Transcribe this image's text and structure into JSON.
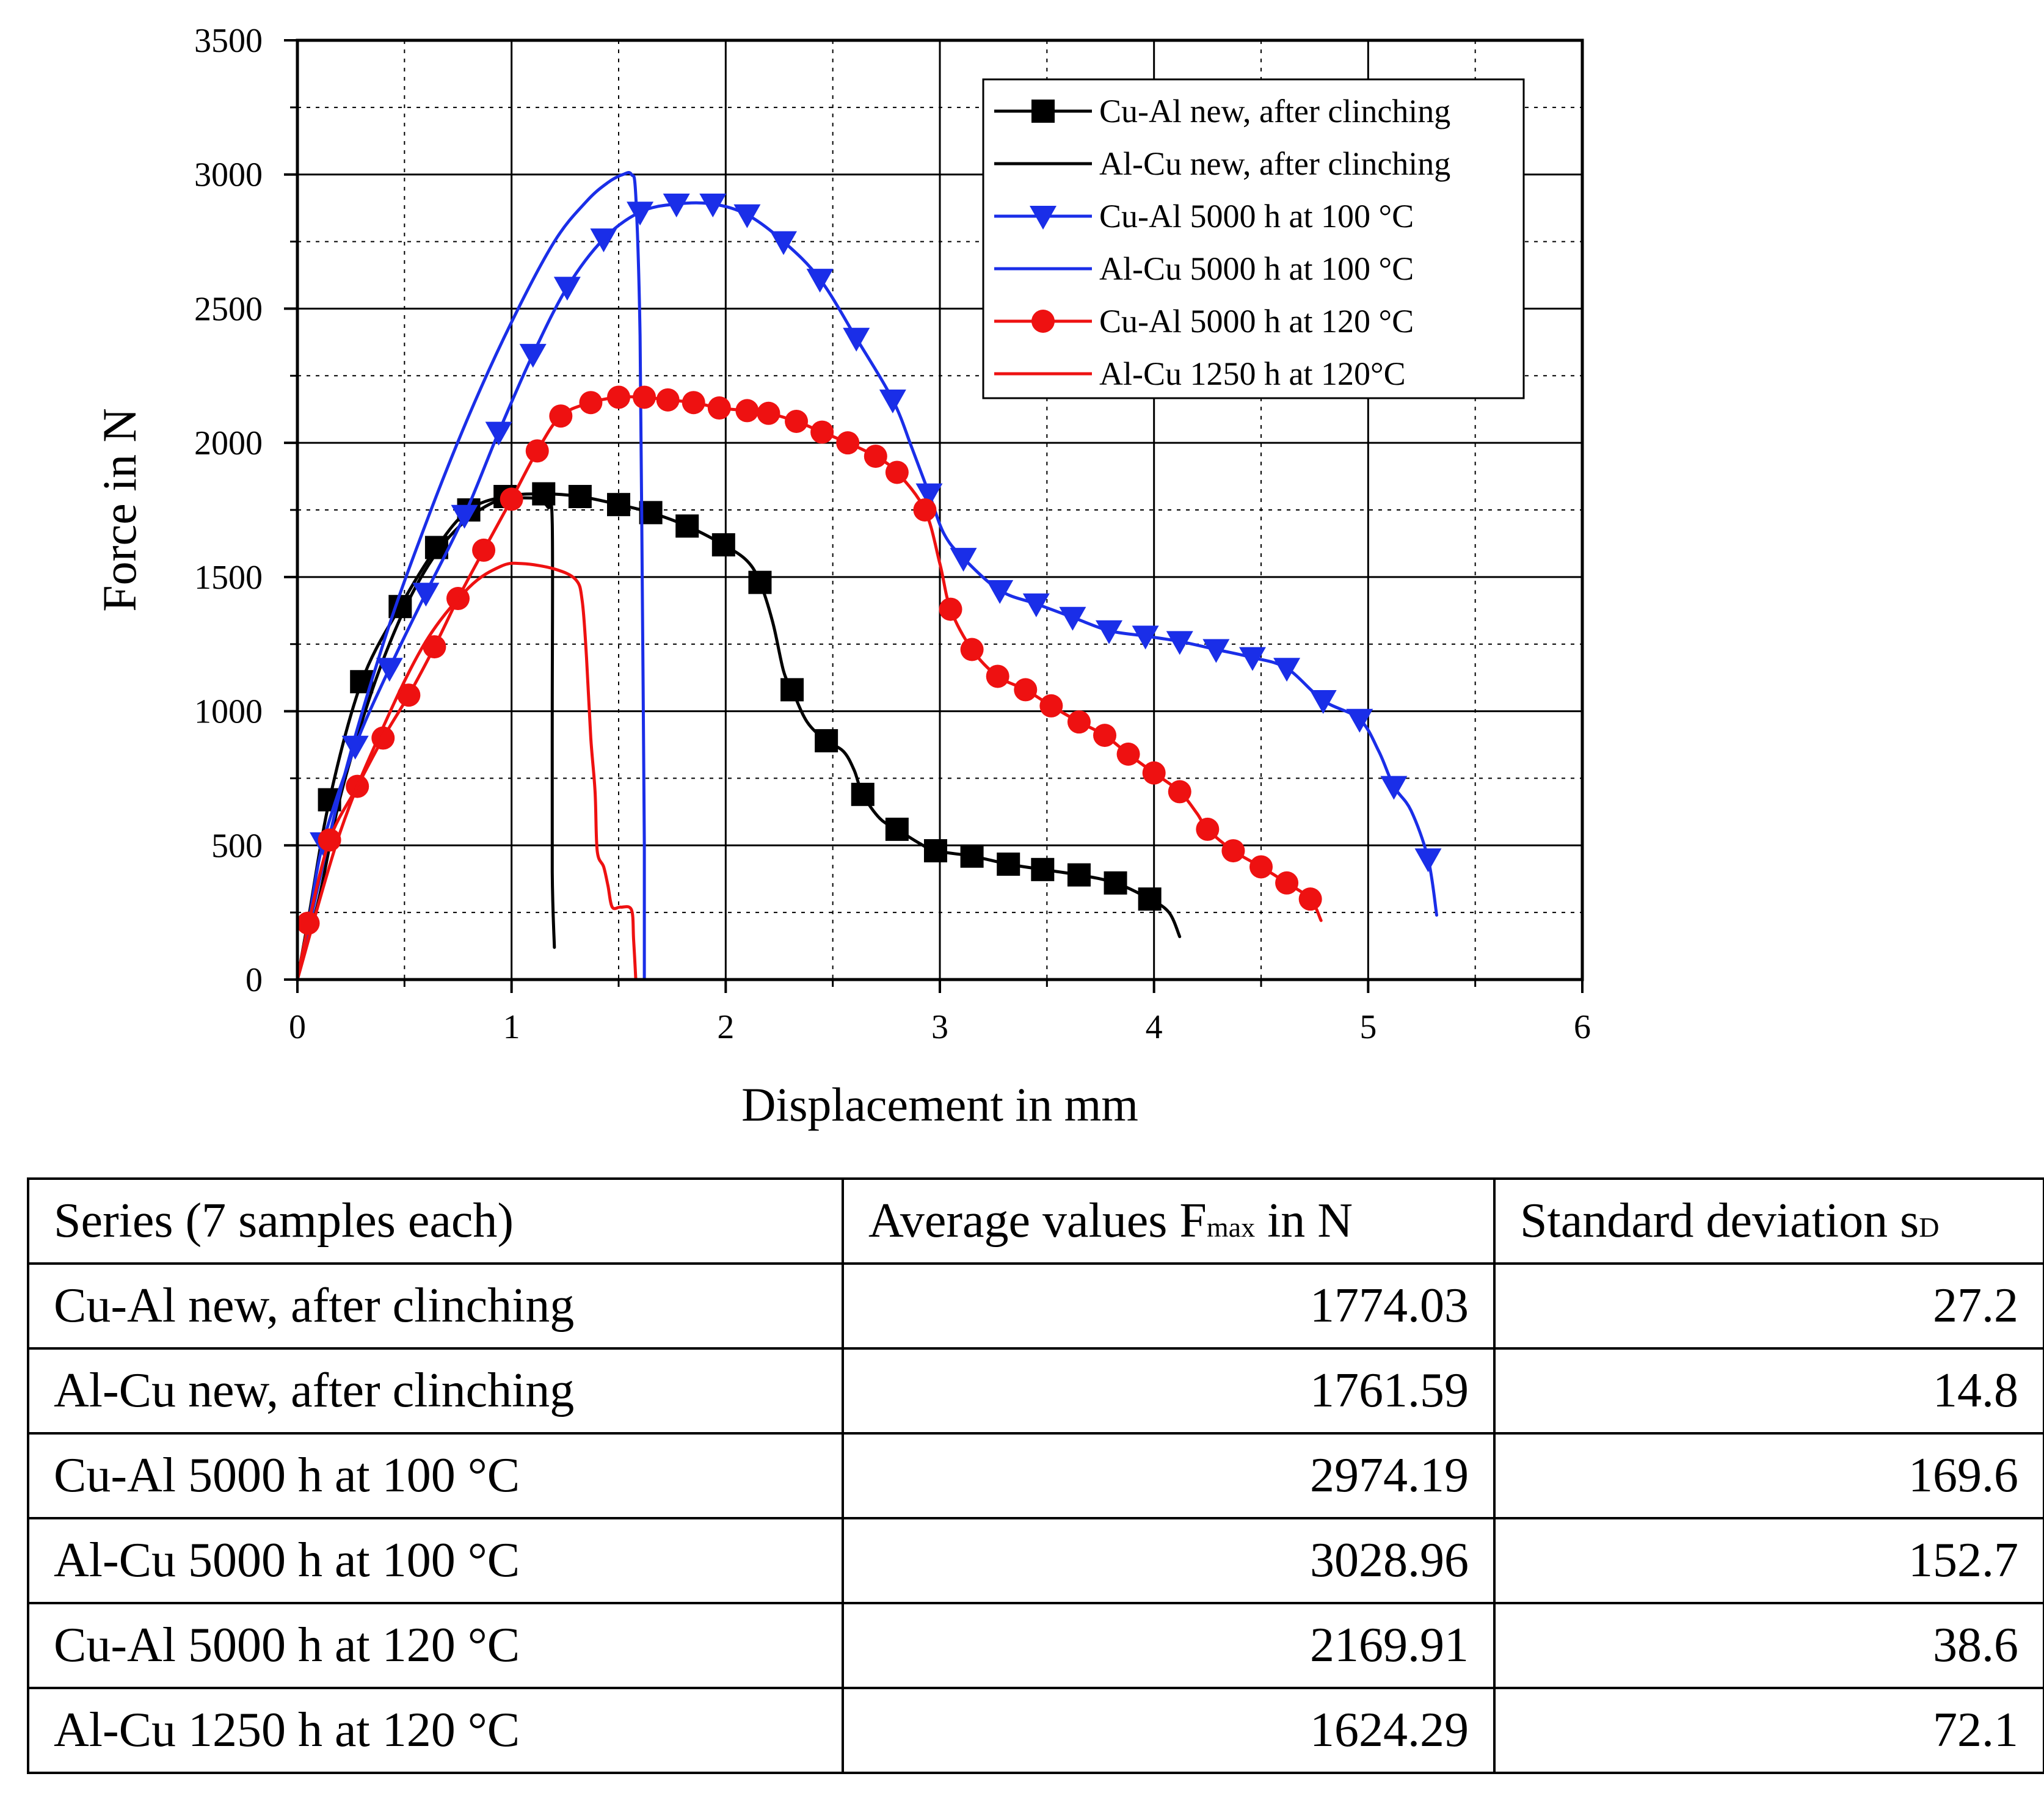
{
  "chart_data": {
    "type": "line",
    "title": "",
    "xlabel": "Displacement in mm",
    "ylabel": "Force in N",
    "xlim": [
      0,
      6
    ],
    "ylim": [
      0,
      3500
    ],
    "xticks": [
      "0",
      "1",
      "2",
      "3",
      "4",
      "5",
      "6"
    ],
    "yticks": [
      "0",
      "500",
      "1000",
      "1500",
      "2000",
      "2500",
      "3000",
      "3500"
    ],
    "grid": true,
    "legend_position": "top-right",
    "series": [
      {
        "name": "Cu-Al new, after clinching",
        "color": "#000000",
        "marker": "square",
        "line": [
          [
            0,
            0
          ],
          [
            0.05,
            220
          ],
          [
            0.15,
            670
          ],
          [
            0.3,
            1110
          ],
          [
            0.48,
            1390
          ],
          [
            0.65,
            1610
          ],
          [
            0.8,
            1750
          ],
          [
            0.97,
            1800
          ],
          [
            1.15,
            1810
          ],
          [
            1.32,
            1800
          ],
          [
            1.5,
            1770
          ],
          [
            1.65,
            1740
          ],
          [
            1.82,
            1690
          ],
          [
            1.99,
            1620
          ],
          [
            2.1,
            1560
          ],
          [
            2.16,
            1480
          ],
          [
            2.22,
            1330
          ],
          [
            2.27,
            1150
          ],
          [
            2.31,
            1080
          ],
          [
            2.38,
            960
          ],
          [
            2.47,
            890
          ],
          [
            2.55,
            850
          ],
          [
            2.6,
            780
          ],
          [
            2.64,
            690
          ],
          [
            2.72,
            600
          ],
          [
            2.8,
            560
          ],
          [
            2.9,
            510
          ],
          [
            2.98,
            480
          ],
          [
            3.15,
            460
          ],
          [
            3.32,
            430
          ],
          [
            3.48,
            410
          ],
          [
            3.65,
            390
          ],
          [
            3.82,
            360
          ],
          [
            3.98,
            300
          ],
          [
            4.07,
            250
          ],
          [
            4.12,
            160
          ]
        ],
        "markers": [
          [
            0.15,
            670
          ],
          [
            0.3,
            1110
          ],
          [
            0.48,
            1390
          ],
          [
            0.65,
            1610
          ],
          [
            0.8,
            1750
          ],
          [
            0.97,
            1800
          ],
          [
            1.15,
            1810
          ],
          [
            1.32,
            1800
          ],
          [
            1.5,
            1770
          ],
          [
            1.65,
            1740
          ],
          [
            1.82,
            1690
          ],
          [
            1.99,
            1620
          ],
          [
            2.16,
            1480
          ],
          [
            2.31,
            1080
          ],
          [
            2.47,
            890
          ],
          [
            2.64,
            690
          ],
          [
            2.8,
            560
          ],
          [
            2.98,
            480
          ],
          [
            3.15,
            460
          ],
          [
            3.32,
            430
          ],
          [
            3.48,
            410
          ],
          [
            3.65,
            390
          ],
          [
            3.82,
            360
          ],
          [
            3.98,
            300
          ]
        ]
      },
      {
        "name": "Al-Cu new, after clinching",
        "color": "#000000",
        "marker": "none",
        "line": [
          [
            0,
            0
          ],
          [
            0.1,
            300
          ],
          [
            0.2,
            680
          ],
          [
            0.35,
            1080
          ],
          [
            0.5,
            1380
          ],
          [
            0.65,
            1590
          ],
          [
            0.8,
            1720
          ],
          [
            0.95,
            1790
          ],
          [
            1.05,
            1795
          ],
          [
            1.12,
            1790
          ],
          [
            1.17,
            1760
          ],
          [
            1.19,
            1700
          ],
          [
            1.19,
            1000
          ],
          [
            1.19,
            400
          ],
          [
            1.2,
            120
          ]
        ],
        "markers": []
      },
      {
        "name": "Cu-Al 5000 h at 100 °C",
        "color": "#1a2ee8",
        "marker": "triangle-down",
        "line": [
          [
            0,
            0
          ],
          [
            0.05,
            200
          ],
          [
            0.12,
            510
          ],
          [
            0.27,
            870
          ],
          [
            0.43,
            1160
          ],
          [
            0.6,
            1440
          ],
          [
            0.78,
            1730
          ],
          [
            0.94,
            2040
          ],
          [
            1.1,
            2330
          ],
          [
            1.26,
            2580
          ],
          [
            1.43,
            2760
          ],
          [
            1.6,
            2860
          ],
          [
            1.77,
            2890
          ],
          [
            1.94,
            2890
          ],
          [
            2.1,
            2850
          ],
          [
            2.27,
            2750
          ],
          [
            2.44,
            2610
          ],
          [
            2.61,
            2390
          ],
          [
            2.78,
            2160
          ],
          [
            2.87,
            1980
          ],
          [
            2.95,
            1810
          ],
          [
            3.02,
            1660
          ],
          [
            3.11,
            1570
          ],
          [
            3.28,
            1450
          ],
          [
            3.45,
            1400
          ],
          [
            3.62,
            1350
          ],
          [
            3.79,
            1300
          ],
          [
            3.96,
            1280
          ],
          [
            4.12,
            1260
          ],
          [
            4.29,
            1230
          ],
          [
            4.46,
            1200
          ],
          [
            4.62,
            1160
          ],
          [
            4.79,
            1040
          ],
          [
            4.96,
            970
          ],
          [
            5.05,
            850
          ],
          [
            5.12,
            720
          ],
          [
            5.2,
            630
          ],
          [
            5.28,
            450
          ],
          [
            5.32,
            240
          ]
        ],
        "markers": [
          [
            0.12,
            510
          ],
          [
            0.27,
            870
          ],
          [
            0.43,
            1160
          ],
          [
            0.6,
            1440
          ],
          [
            0.78,
            1730
          ],
          [
            0.94,
            2040
          ],
          [
            1.1,
            2330
          ],
          [
            1.26,
            2580
          ],
          [
            1.43,
            2760
          ],
          [
            1.6,
            2860
          ],
          [
            1.77,
            2890
          ],
          [
            1.94,
            2890
          ],
          [
            2.1,
            2850
          ],
          [
            2.27,
            2750
          ],
          [
            2.44,
            2610
          ],
          [
            2.61,
            2390
          ],
          [
            2.78,
            2160
          ],
          [
            2.95,
            1810
          ],
          [
            3.11,
            1570
          ],
          [
            3.28,
            1450
          ],
          [
            3.45,
            1400
          ],
          [
            3.62,
            1350
          ],
          [
            3.79,
            1300
          ],
          [
            3.96,
            1280
          ],
          [
            4.12,
            1260
          ],
          [
            4.29,
            1230
          ],
          [
            4.46,
            1200
          ],
          [
            4.62,
            1160
          ],
          [
            4.79,
            1040
          ],
          [
            4.96,
            970
          ],
          [
            5.12,
            720
          ],
          [
            5.28,
            450
          ]
        ]
      },
      {
        "name": "Al-Cu 5000 h at 100 °C",
        "color": "#1a2ee8",
        "marker": "none",
        "line": [
          [
            0,
            0
          ],
          [
            0.2,
            700
          ],
          [
            0.4,
            1250
          ],
          [
            0.6,
            1700
          ],
          [
            0.8,
            2100
          ],
          [
            1.0,
            2450
          ],
          [
            1.2,
            2750
          ],
          [
            1.35,
            2900
          ],
          [
            1.45,
            2970
          ],
          [
            1.52,
            3000
          ],
          [
            1.56,
            3000
          ],
          [
            1.58,
            2920
          ],
          [
            1.6,
            2400
          ],
          [
            1.61,
            1500
          ],
          [
            1.62,
            500
          ],
          [
            1.62,
            0
          ]
        ],
        "markers": []
      },
      {
        "name": "Cu-Al 5000 h at 120 °C",
        "color": "#ee1111",
        "marker": "circle",
        "line": [
          [
            0,
            0
          ],
          [
            0.05,
            200
          ],
          [
            0.15,
            520
          ],
          [
            0.28,
            720
          ],
          [
            0.4,
            900
          ],
          [
            0.52,
            1060
          ],
          [
            0.64,
            1240
          ],
          [
            0.75,
            1420
          ],
          [
            0.87,
            1600
          ],
          [
            1.0,
            1790
          ],
          [
            1.12,
            1970
          ],
          [
            1.23,
            2100
          ],
          [
            1.37,
            2150
          ],
          [
            1.5,
            2170
          ],
          [
            1.62,
            2170
          ],
          [
            1.73,
            2160
          ],
          [
            1.85,
            2150
          ],
          [
            1.97,
            2130
          ],
          [
            2.1,
            2120
          ],
          [
            2.2,
            2110
          ],
          [
            2.33,
            2080
          ],
          [
            2.45,
            2040
          ],
          [
            2.57,
            2000
          ],
          [
            2.7,
            1950
          ],
          [
            2.8,
            1890
          ],
          [
            2.93,
            1750
          ],
          [
            3.0,
            1550
          ],
          [
            3.05,
            1380
          ],
          [
            3.15,
            1230
          ],
          [
            3.27,
            1130
          ],
          [
            3.4,
            1080
          ],
          [
            3.52,
            1020
          ],
          [
            3.65,
            960
          ],
          [
            3.77,
            910
          ],
          [
            3.88,
            840
          ],
          [
            4.0,
            770
          ],
          [
            4.12,
            700
          ],
          [
            4.2,
            620
          ],
          [
            4.25,
            560
          ],
          [
            4.37,
            480
          ],
          [
            4.5,
            420
          ],
          [
            4.62,
            360
          ],
          [
            4.73,
            300
          ],
          [
            4.78,
            220
          ]
        ],
        "markers": [
          [
            0.05,
            210
          ],
          [
            0.15,
            520
          ],
          [
            0.28,
            720
          ],
          [
            0.4,
            900
          ],
          [
            0.52,
            1060
          ],
          [
            0.64,
            1240
          ],
          [
            0.75,
            1420
          ],
          [
            0.87,
            1600
          ],
          [
            1.0,
            1790
          ],
          [
            1.12,
            1970
          ],
          [
            1.23,
            2100
          ],
          [
            1.37,
            2150
          ],
          [
            1.5,
            2170
          ],
          [
            1.62,
            2170
          ],
          [
            1.73,
            2160
          ],
          [
            1.85,
            2150
          ],
          [
            1.97,
            2130
          ],
          [
            2.1,
            2120
          ],
          [
            2.2,
            2110
          ],
          [
            2.33,
            2080
          ],
          [
            2.45,
            2040
          ],
          [
            2.57,
            2000
          ],
          [
            2.7,
            1950
          ],
          [
            2.8,
            1890
          ],
          [
            2.93,
            1750
          ],
          [
            3.05,
            1380
          ],
          [
            3.15,
            1230
          ],
          [
            3.27,
            1130
          ],
          [
            3.4,
            1080
          ],
          [
            3.52,
            1020
          ],
          [
            3.65,
            960
          ],
          [
            3.77,
            910
          ],
          [
            3.88,
            840
          ],
          [
            4.0,
            770
          ],
          [
            4.12,
            700
          ],
          [
            4.25,
            560
          ],
          [
            4.37,
            480
          ],
          [
            4.5,
            420
          ],
          [
            4.62,
            360
          ],
          [
            4.73,
            300
          ]
        ]
      },
      {
        "name": "Al-Cu 1250 h at 120°C",
        "color": "#ee1111",
        "marker": "none",
        "line": [
          [
            0,
            0
          ],
          [
            0.2,
            550
          ],
          [
            0.4,
            940
          ],
          [
            0.6,
            1260
          ],
          [
            0.8,
            1460
          ],
          [
            0.95,
            1540
          ],
          [
            1.05,
            1550
          ],
          [
            1.2,
            1530
          ],
          [
            1.3,
            1490
          ],
          [
            1.33,
            1410
          ],
          [
            1.35,
            1200
          ],
          [
            1.37,
            900
          ],
          [
            1.39,
            700
          ],
          [
            1.4,
            480
          ],
          [
            1.43,
            420
          ],
          [
            1.45,
            350
          ],
          [
            1.47,
            270
          ],
          [
            1.51,
            270
          ],
          [
            1.56,
            260
          ],
          [
            1.57,
            150
          ],
          [
            1.58,
            0
          ]
        ],
        "markers": []
      }
    ]
  },
  "table": {
    "headers": {
      "series": "Series (7 samples each)",
      "avg_main": "Average values F",
      "avg_sub": "max",
      "avg_tail": " in N",
      "sd_main": "Standard deviation s",
      "sd_sub": "D"
    },
    "rows": [
      {
        "series": "Cu-Al new, after clinching",
        "avg": "1774.03",
        "sd": "27.2"
      },
      {
        "series": "Al-Cu new, after clinching",
        "avg": "1761.59",
        "sd": "14.8"
      },
      {
        "series": "Cu-Al 5000 h at 100 °C",
        "avg": "2974.19",
        "sd": "169.6"
      },
      {
        "series": "Al-Cu 5000 h at 100 °C",
        "avg": "3028.96",
        "sd": "152.7"
      },
      {
        "series": "Cu-Al 5000 h at 120 °C",
        "avg": "2169.91",
        "sd": "38.6"
      },
      {
        "series": "Al-Cu 1250 h at 120 °C",
        "avg": "1624.29",
        "sd": "72.1"
      }
    ]
  }
}
